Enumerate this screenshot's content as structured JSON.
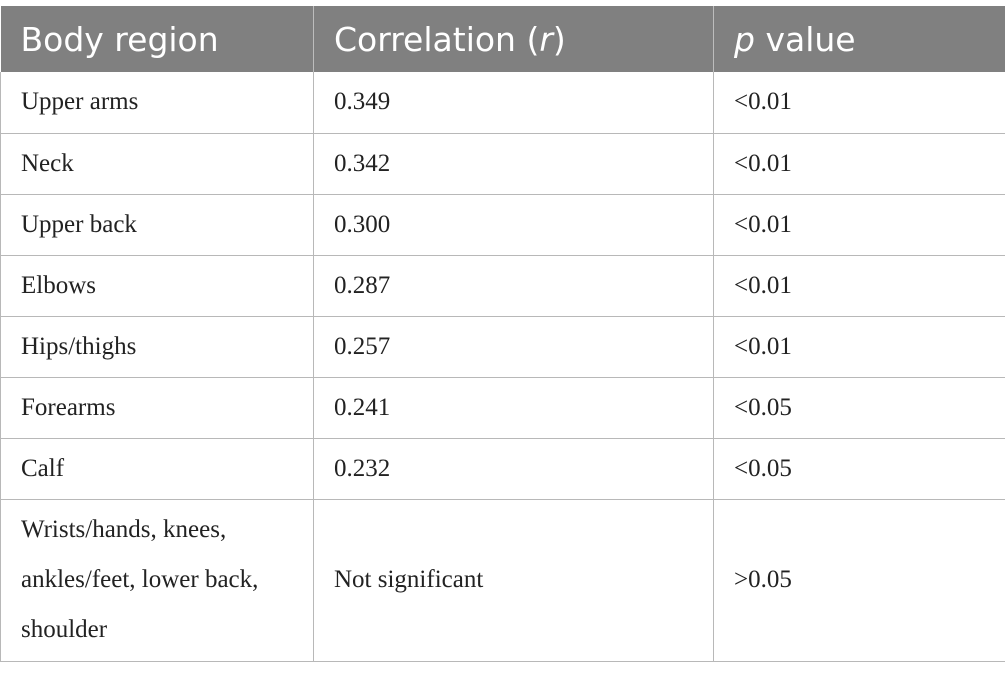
{
  "table": {
    "headers": {
      "col1": "Body region",
      "col2_text": "Correlation (",
      "col2_italic": "r",
      "col2_close": ")",
      "col3_italic": "p",
      "col3_text": " value"
    },
    "rows": [
      {
        "region": "Upper arms",
        "r": "0.349",
        "p": "<0.01"
      },
      {
        "region": "Neck",
        "r": "0.342",
        "p": "<0.01"
      },
      {
        "region": "Upper back",
        "r": "0.300",
        "p": "<0.01"
      },
      {
        "region": "Elbows",
        "r": "0.287",
        "p": "<0.01"
      },
      {
        "region": "Hips/thighs",
        "r": "0.257",
        "p": "<0.01"
      },
      {
        "region": "Forearms",
        "r": "0.241",
        "p": "<0.05"
      },
      {
        "region": "Calf",
        "r": "0.232",
        "p": "<0.05"
      },
      {
        "region": "Wrists/hands, knees, ankles/feet, lower back, shoulder",
        "r": "Not significant",
        "p": ">0.05"
      }
    ]
  }
}
